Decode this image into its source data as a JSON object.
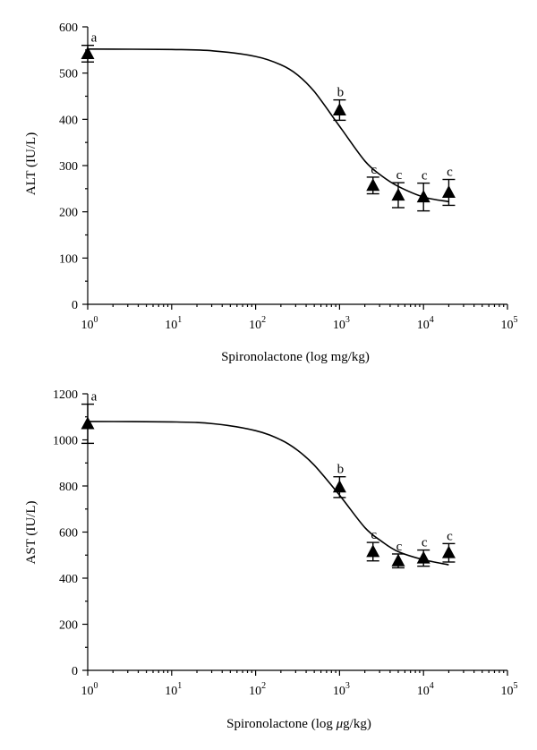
{
  "chart_data": [
    {
      "type": "scatter",
      "xlabel": "Spironolactone (log mg/kg)",
      "ylabel": "ALT (IU/L)",
      "x_scale": "log",
      "xlim": [
        1,
        100000
      ],
      "ylim": [
        0,
        600
      ],
      "grid": false,
      "x_ticks": [
        {
          "base": "10",
          "exp": "0",
          "value": 1
        },
        {
          "base": "10",
          "exp": "1",
          "value": 10
        },
        {
          "base": "10",
          "exp": "2",
          "value": 100
        },
        {
          "base": "10",
          "exp": "3",
          "value": 1000
        },
        {
          "base": "10",
          "exp": "4",
          "value": 10000
        },
        {
          "base": "10",
          "exp": "5",
          "value": 100000
        }
      ],
      "y_ticks": [
        "0",
        "100",
        "200",
        "300",
        "400",
        "500",
        "600"
      ],
      "points": [
        {
          "x": 1,
          "y": 542,
          "err": 18,
          "label": "a"
        },
        {
          "x": 1000,
          "y": 420,
          "err": 22,
          "label": "b"
        },
        {
          "x": 2500,
          "y": 257,
          "err": 18,
          "label": "c"
        },
        {
          "x": 5000,
          "y": 236,
          "err": 27,
          "label": "c"
        },
        {
          "x": 10000,
          "y": 232,
          "err": 30,
          "label": "c"
        },
        {
          "x": 20000,
          "y": 242,
          "err": 28,
          "label": "c"
        }
      ],
      "fit_curve": [
        {
          "x": 1,
          "y": 552
        },
        {
          "x": 10,
          "y": 551
        },
        {
          "x": 31.6,
          "y": 548
        },
        {
          "x": 100,
          "y": 536
        },
        {
          "x": 200,
          "y": 518
        },
        {
          "x": 316,
          "y": 496
        },
        {
          "x": 500,
          "y": 460
        },
        {
          "x": 1000,
          "y": 385
        },
        {
          "x": 2000,
          "y": 310
        },
        {
          "x": 3162,
          "y": 278
        },
        {
          "x": 5000,
          "y": 255
        },
        {
          "x": 10000,
          "y": 232
        },
        {
          "x": 20000,
          "y": 222
        }
      ]
    },
    {
      "type": "scatter",
      "xlabel_prefix": "Spironolactone (log ",
      "xlabel_unit_mu": "μ",
      "xlabel_suffix": "g/kg)",
      "ylabel": "AST (IU/L)",
      "x_scale": "log",
      "xlim": [
        1,
        100000
      ],
      "ylim": [
        0,
        1200
      ],
      "grid": false,
      "x_ticks": [
        {
          "base": "10",
          "exp": "0",
          "value": 1
        },
        {
          "base": "10",
          "exp": "1",
          "value": 10
        },
        {
          "base": "10",
          "exp": "2",
          "value": 100
        },
        {
          "base": "10",
          "exp": "3",
          "value": 1000
        },
        {
          "base": "10",
          "exp": "4",
          "value": 10000
        },
        {
          "base": "10",
          "exp": "5",
          "value": 100000
        }
      ],
      "y_ticks": [
        "0",
        "200",
        "400",
        "600",
        "800",
        "1000",
        "1200"
      ],
      "points": [
        {
          "x": 1,
          "y": 1070,
          "err": 85,
          "label": "a"
        },
        {
          "x": 1000,
          "y": 795,
          "err": 45,
          "label": "b"
        },
        {
          "x": 2500,
          "y": 515,
          "err": 40,
          "label": "c"
        },
        {
          "x": 5000,
          "y": 475,
          "err": 30,
          "label": "c"
        },
        {
          "x": 10000,
          "y": 487,
          "err": 35,
          "label": "c"
        },
        {
          "x": 20000,
          "y": 510,
          "err": 40,
          "label": "c"
        }
      ],
      "fit_curve": [
        {
          "x": 1,
          "y": 1080
        },
        {
          "x": 10,
          "y": 1078
        },
        {
          "x": 31.6,
          "y": 1070
        },
        {
          "x": 100,
          "y": 1040
        },
        {
          "x": 200,
          "y": 1000
        },
        {
          "x": 316,
          "y": 955
        },
        {
          "x": 500,
          "y": 890
        },
        {
          "x": 1000,
          "y": 760
        },
        {
          "x": 2000,
          "y": 620
        },
        {
          "x": 3162,
          "y": 560
        },
        {
          "x": 5000,
          "y": 515
        },
        {
          "x": 10000,
          "y": 480
        },
        {
          "x": 20000,
          "y": 458
        }
      ]
    }
  ]
}
